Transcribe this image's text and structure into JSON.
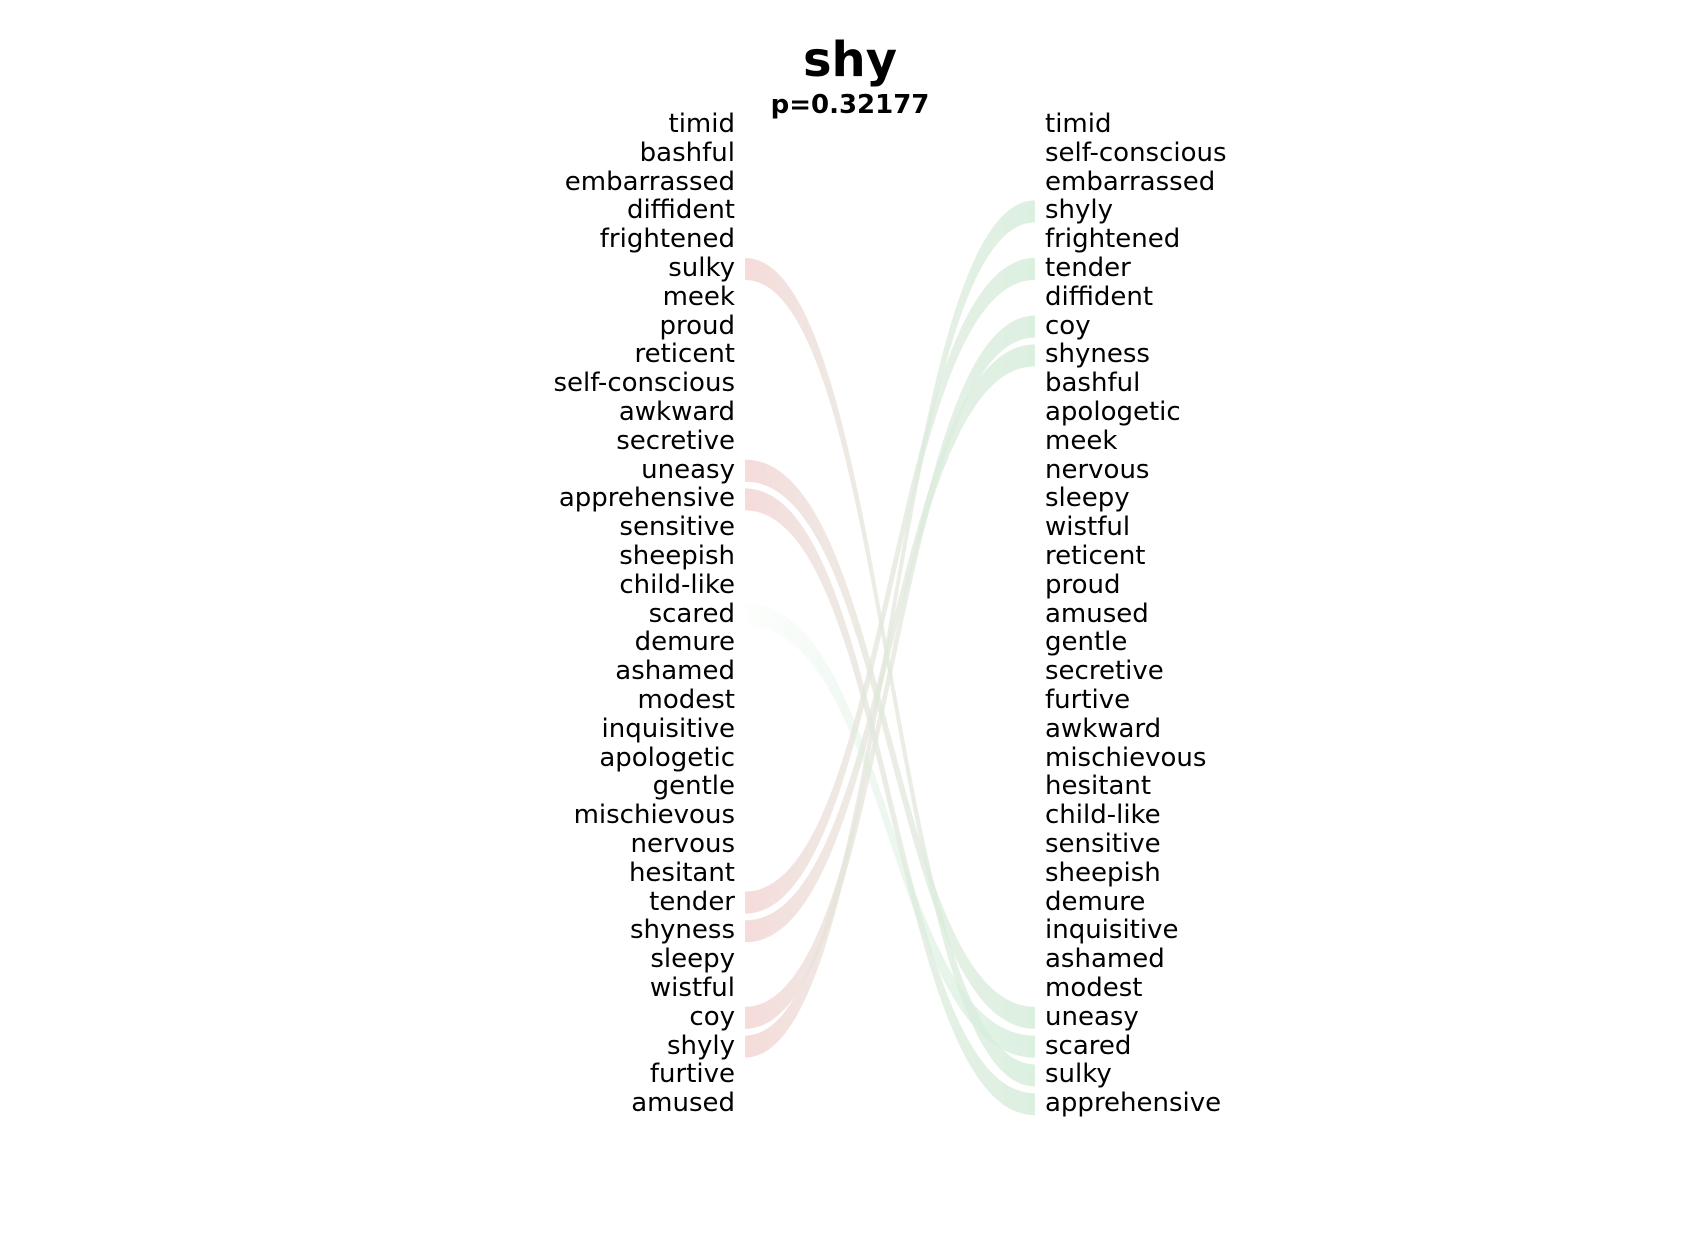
{
  "title": "shy",
  "subtitle": "p=0.32177",
  "left_words": [
    "timid",
    "bashful",
    "embarrassed",
    "diffident",
    "frightened",
    "sulky",
    "meek",
    "proud",
    "reticent",
    "self-conscious",
    "awkward",
    "secretive",
    "uneasy",
    "apprehensive",
    "sensitive",
    "sheepish",
    "child-like",
    "scared",
    "demure",
    "ashamed",
    "modest",
    "inquisitive",
    "apologetic",
    "gentle",
    "mischievous",
    "nervous",
    "hesitant",
    "tender",
    "shyness",
    "sleepy",
    "wistful",
    "coy",
    "shyly",
    "furtive",
    "amused"
  ],
  "right_words": [
    "timid",
    "self-conscious",
    "embarrassed",
    "shyly",
    "frightened",
    "tender",
    "diffident",
    "coy",
    "shyness",
    "bashful",
    "apologetic",
    "meek",
    "nervous",
    "sleepy",
    "wistful",
    "reticent",
    "proud",
    "amused",
    "gentle",
    "secretive",
    "furtive",
    "awkward",
    "mischievous",
    "hesitant",
    "child-like",
    "sensitive",
    "sheepish",
    "demure",
    "inquisitive",
    "ashamed",
    "modest",
    "uneasy",
    "scared",
    "sulky",
    "apprehensive"
  ],
  "highlight_colors": {
    "left_only": "#f6d6d6",
    "right_only": "#d8eedd"
  },
  "left_highlighted": [
    "sulky",
    "uneasy",
    "apprehensive",
    "tender",
    "shyness",
    "coy",
    "shyly"
  ],
  "right_highlighted": [
    "shyly",
    "tender",
    "coy",
    "shyness",
    "uneasy",
    "scared",
    "sulky",
    "apprehensive"
  ]
}
